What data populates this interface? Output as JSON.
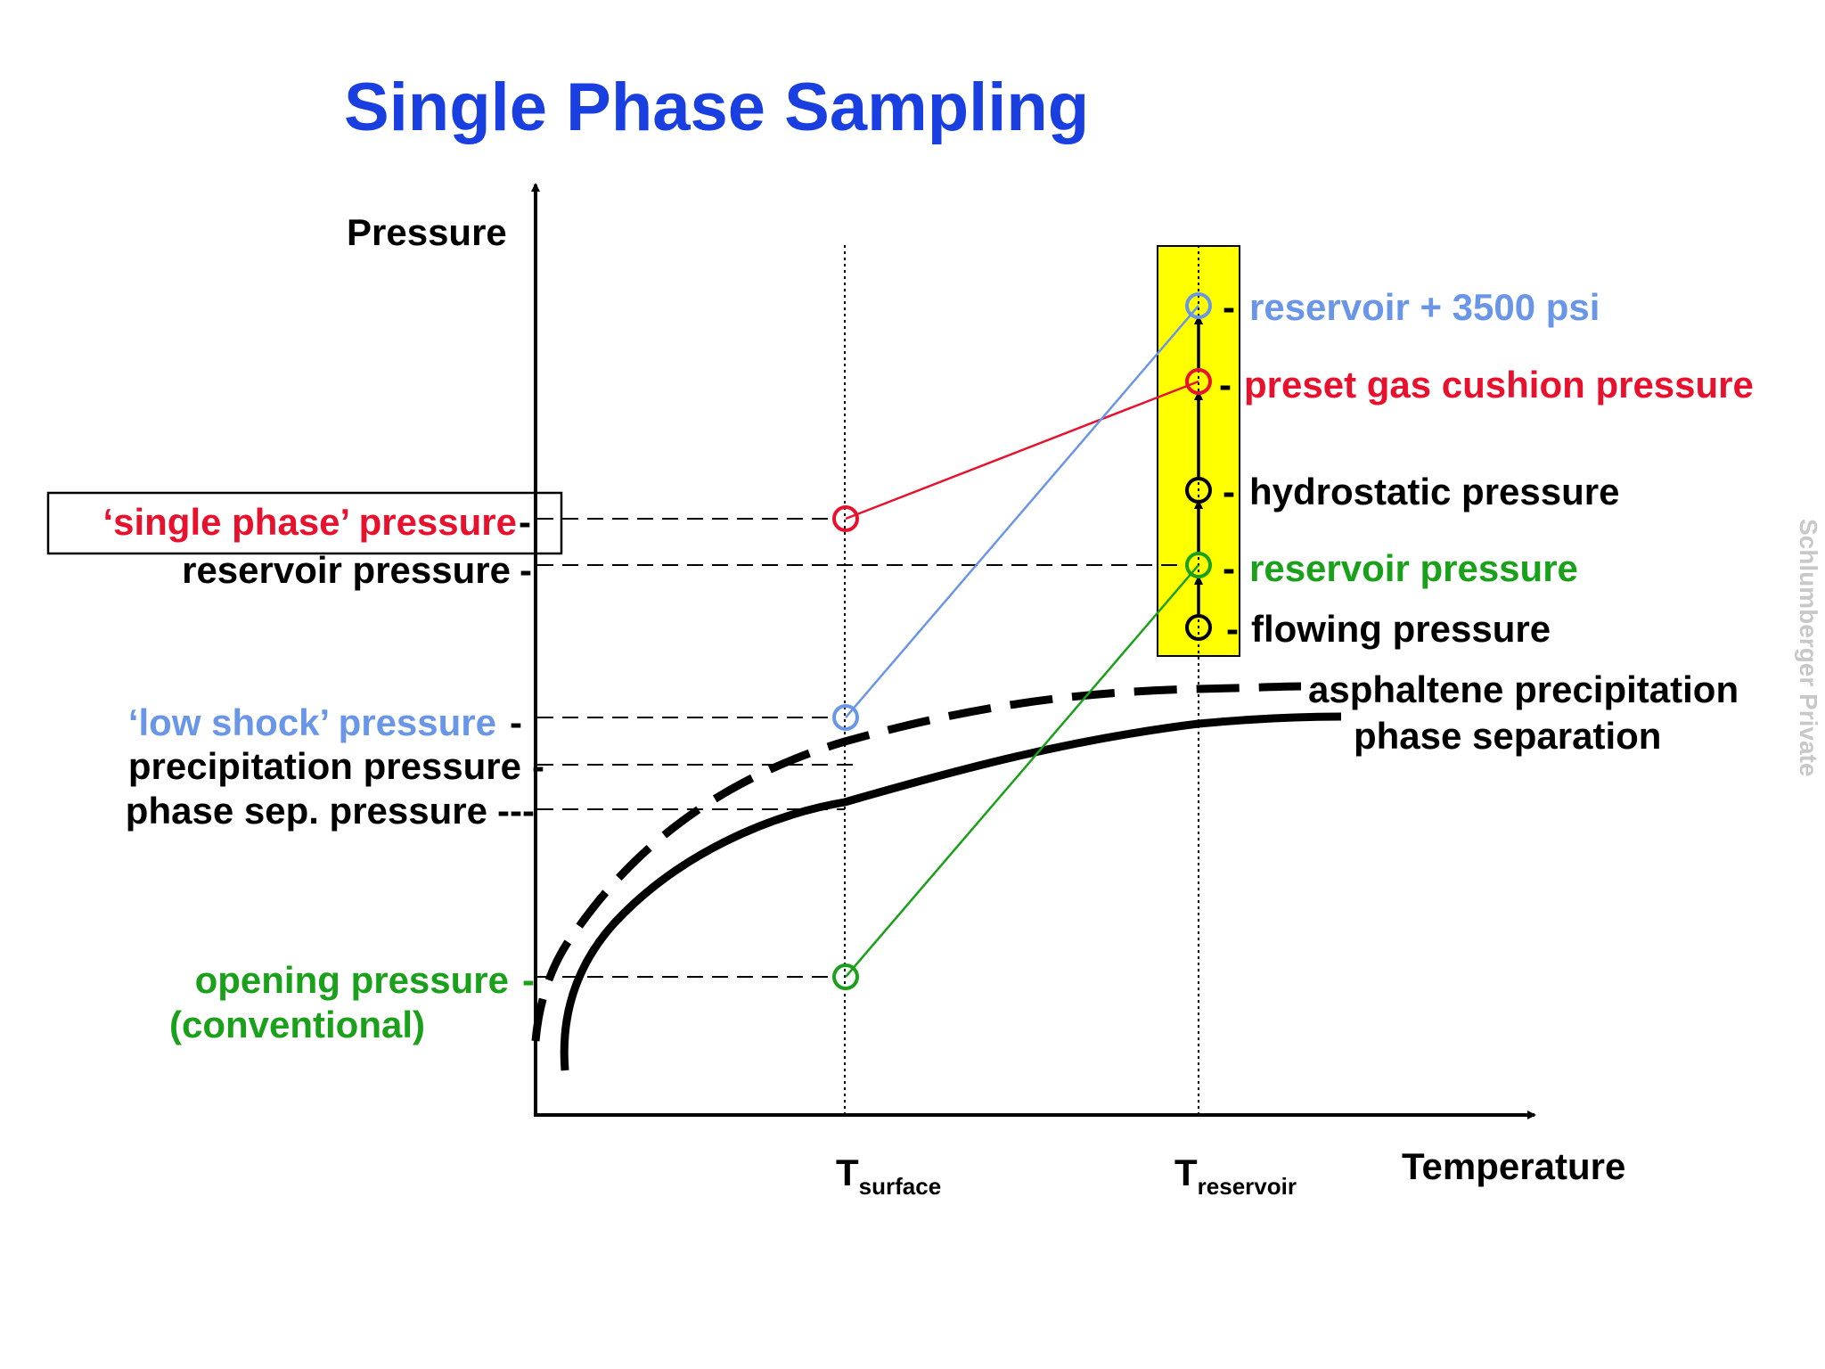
{
  "title": "Single Phase Sampling",
  "watermark": "Schlumberger Private",
  "axes": {
    "y_label": "Pressure",
    "x_label": "Temperature",
    "t_surface": {
      "main": "T",
      "sub": "surface"
    },
    "t_reservoir": {
      "main": "T",
      "sub": "reservoir"
    }
  },
  "left_labels": {
    "single_phase": "‘single phase’ pressure",
    "reservoir": "reservoir pressure",
    "low_shock": "‘low shock’ pressure",
    "precipitation": "precipitation pressure",
    "phase_sep": "phase sep. pressure",
    "opening_line1": "opening pressure",
    "opening_line2": "(conventional)"
  },
  "right_labels": {
    "reservoir_plus": "reservoir + 3500 psi",
    "gas_cushion": "preset gas cushion pressure",
    "hydrostatic": "hydrostatic pressure",
    "reservoir": "reservoir pressure",
    "flowing": "flowing pressure"
  },
  "curve_labels": {
    "asphaltene": "asphaltene precipitation",
    "phase_separation": "phase separation"
  },
  "colors": {
    "title": "#1a3fe0",
    "red": "#e8112d",
    "blue": "#6a96e8",
    "green": "#1aa01a",
    "black": "#000000",
    "highlight": "#ffff00",
    "watermark": "#c8c8c8"
  }
}
